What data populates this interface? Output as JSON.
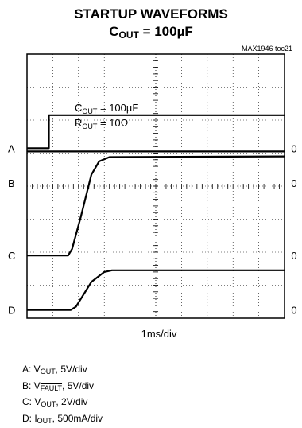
{
  "header": {
    "title_line1": "STARTUP WAVEFORMS",
    "title_line2_prefix": "C",
    "title_line2_sub": "OUT",
    "title_line2_suffix": " = 100µF",
    "figure_ref": "MAX1946 toc21"
  },
  "chart_data": {
    "type": "line",
    "title": "STARTUP WAVEFORMS",
    "subtitle": "COUT = 100µF",
    "xlabel": "1ms/div",
    "time_per_div_ms": 1,
    "divisions_x": 10,
    "divisions_y": 8,
    "grid": true,
    "annotation": {
      "line1_prefix": "C",
      "line1_sub": "OUT",
      "line1_suffix": " = 100µF",
      "line2_prefix": "R",
      "line2_sub": "OUT",
      "line2_suffix": " = 10Ω"
    },
    "series": [
      {
        "name": "A",
        "label_prefix": "A: V",
        "label_sub": "OUT",
        "label_suffix": ", 5V/div",
        "overline": false,
        "zero_marker": "0",
        "zero_div": 5.15,
        "color": "#000000",
        "points": [
          [
            0,
            0
          ],
          [
            0.85,
            0
          ],
          [
            0.85,
            1.0
          ],
          [
            10,
            1.0
          ]
        ]
      },
      {
        "name": "B",
        "label_prefix": "B: V",
        "label_sub": "FAULT",
        "label_suffix": ", 5V/div",
        "overline": true,
        "zero_marker": "0",
        "zero_div": 4.1,
        "color": "#000000",
        "points": [
          [
            0,
            0.95
          ],
          [
            10,
            0.95
          ]
        ]
      },
      {
        "name": "C",
        "label_prefix": "C: V",
        "label_sub": "OUT",
        "label_suffix": ", 2V/div",
        "overline": false,
        "zero_marker": "0",
        "zero_div": 1.9,
        "color": "#000000",
        "points": [
          [
            0,
            0
          ],
          [
            1.6,
            0
          ],
          [
            1.75,
            0.2
          ],
          [
            2.1,
            1.2
          ],
          [
            2.5,
            2.45
          ],
          [
            2.8,
            2.85
          ],
          [
            3.2,
            2.98
          ],
          [
            10,
            3.0
          ]
        ]
      },
      {
        "name": "D",
        "label_prefix": "D: I",
        "label_sub": "OUT",
        "label_suffix": ", 500mA/div",
        "overline": false,
        "zero_marker": "0",
        "zero_div": 0.25,
        "color": "#000000",
        "points": [
          [
            0,
            0
          ],
          [
            1.7,
            0
          ],
          [
            1.9,
            0.1
          ],
          [
            2.5,
            0.85
          ],
          [
            3.0,
            1.15
          ],
          [
            3.3,
            1.2
          ],
          [
            10,
            1.2
          ]
        ]
      }
    ]
  }
}
